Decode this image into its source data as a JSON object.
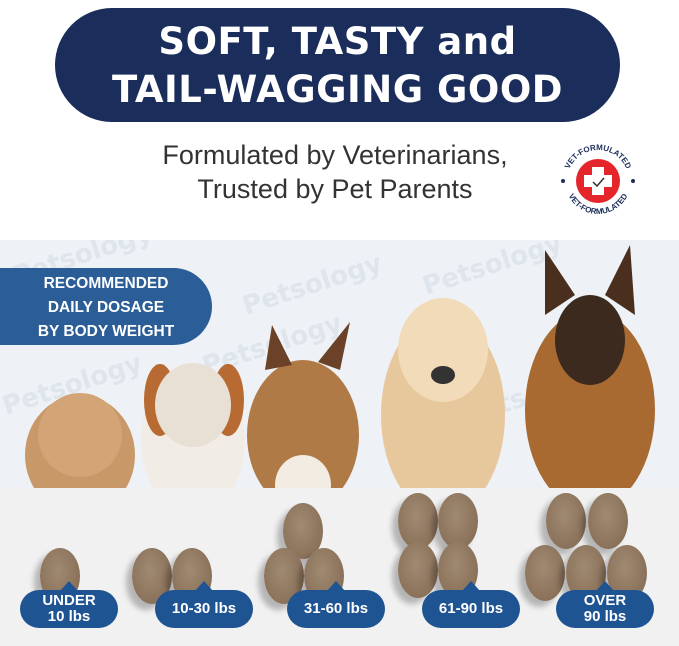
{
  "header": {
    "line1": "SOFT, TASTY and",
    "line2": "TAIL-WAGGING GOOD"
  },
  "subtitle": {
    "line1": "Formulated by Veterinarians,",
    "line2": "Trusted by Pet Parents"
  },
  "badge": {
    "text_top": "VET-FORMULATED",
    "text_bottom": "VET-FORMULATED",
    "icon": "check-cross-icon",
    "color": "#e4262b"
  },
  "watermark": "Petsology",
  "dosage_title": {
    "line1": "RECOMMENDED",
    "line2": "DAILY DOSAGE",
    "line3": "BY BODY WEIGHT"
  },
  "doses": [
    {
      "line1": "UNDER",
      "line2": "10 lbs",
      "chews": 1
    },
    {
      "line1": "10-30 lbs",
      "line2": "",
      "chews": 2
    },
    {
      "line1": "31-60 lbs",
      "line2": "",
      "chews": 3
    },
    {
      "line1": "61-90 lbs",
      "line2": "",
      "chews": 4
    },
    {
      "line1": "OVER",
      "line2": "90 lbs",
      "chews": 5
    }
  ],
  "colors": {
    "navy": "#1b2d5a",
    "blue": "#1f5493",
    "chew": "#8a715a"
  }
}
